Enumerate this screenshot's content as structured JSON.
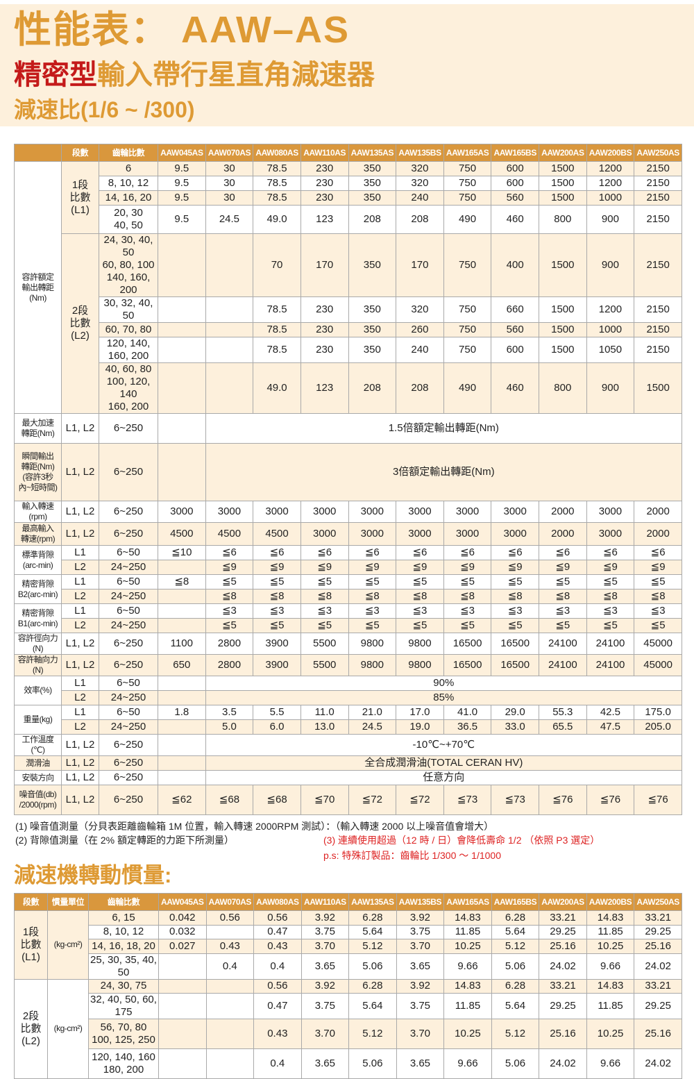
{
  "header": {
    "title": "性能表：  AAW–AS",
    "subtitle_red": "精密型",
    "subtitle_rest": "輸入帶行星直角減速器",
    "ratio_range": "減速比(1/6 ~ /300)"
  },
  "colors": {
    "accent": "#de9a34",
    "header_bg": "#d9973d",
    "stripe": "#fdf0dc",
    "warning": "#d22222",
    "brand_red": "#c41a1a"
  },
  "models": [
    "AAW045AS",
    "AAW070AS",
    "AAW080AS",
    "AAW110AS",
    "AAW135AS",
    "AAW135BS",
    "AAW165AS",
    "AAW165BS",
    "AAW200AS",
    "AAW200BS",
    "AAW250AS"
  ],
  "table1": {
    "headers": [
      "",
      "段數",
      "齒輪比數"
    ],
    "rows": [
      {
        "cells": [
          "容許額定\n輸出轉距\n(Nm)",
          "1段\n比數\n(L1)",
          "6",
          "9.5",
          "30",
          "78.5",
          "230",
          "350",
          "320",
          "750",
          "600",
          "1500",
          "1200",
          "2150"
        ]
      },
      {
        "cells": [
          "8, 10, 12",
          "9.5",
          "30",
          "78.5",
          "230",
          "350",
          "320",
          "750",
          "600",
          "1500",
          "1200",
          "2150"
        ]
      },
      {
        "cells": [
          "14, 16, 20",
          "9.5",
          "30",
          "78.5",
          "230",
          "350",
          "240",
          "750",
          "560",
          "1500",
          "1000",
          "2150"
        ]
      },
      {
        "cells": [
          "20, 30\n40, 50",
          "9.5",
          "24.5",
          "49.0",
          "123",
          "208",
          "208",
          "490",
          "460",
          "800",
          "900",
          "2150"
        ]
      },
      {
        "cells": [
          "2段\n比數\n(L2)",
          "24, 30, 40, 50\n60, 80, 100\n140, 160, 200",
          "",
          "",
          "70",
          "170",
          "350",
          "170",
          "750",
          "400",
          "1500",
          "900",
          "2150"
        ]
      },
      {
        "cells": [
          "30, 32, 40, 50",
          "",
          "",
          "78.5",
          "230",
          "350",
          "320",
          "750",
          "660",
          "1500",
          "1200",
          "2150"
        ]
      },
      {
        "cells": [
          "60, 70, 80",
          "",
          "",
          "78.5",
          "230",
          "350",
          "260",
          "750",
          "560",
          "1500",
          "1000",
          "2150"
        ]
      },
      {
        "cells": [
          "120, 140, 160, 200",
          "",
          "",
          "78.5",
          "230",
          "350",
          "240",
          "750",
          "600",
          "1500",
          "1050",
          "2150"
        ]
      },
      {
        "cells": [
          "40, 60, 80\n100, 120, 140\n160, 200",
          "",
          "",
          "49.0",
          "123",
          "208",
          "208",
          "490",
          "460",
          "800",
          "900",
          "1500"
        ]
      },
      {
        "cells": [
          "最大加速\n轉距(Nm)",
          "L1, L2",
          "6~250",
          "",
          "1.5倍額定輸出轉距(Nm)"
        ]
      },
      {
        "cells": [
          "瞬間輸出\n轉距(Nm)\n(容許3秒\n內~短時間)",
          "L1, L2",
          "6~250",
          "",
          "3倍額定輸出轉距(Nm)"
        ]
      },
      {
        "cells": [
          "輸入轉速(rpm)",
          "L1, L2",
          "6~250",
          "3000",
          "3000",
          "3000",
          "3000",
          "3000",
          "3000",
          "3000",
          "3000",
          "2000",
          "3000",
          "2000"
        ]
      },
      {
        "cells": [
          "最高輸入\n轉速(rpm)",
          "L1, L2",
          "6~250",
          "4500",
          "4500",
          "4500",
          "3000",
          "3000",
          "3000",
          "3000",
          "3000",
          "2000",
          "3000",
          "2000"
        ]
      },
      {
        "cells": [
          "標準背隙\n(arc-min)",
          "L1",
          "6~50",
          "≦10",
          "≦6",
          "≦6",
          "≦6",
          "≦6",
          "≦6",
          "≦6",
          "≦6",
          "≦6",
          "≦6",
          "≦6"
        ]
      },
      {
        "cells": [
          "L2",
          "24~250",
          "",
          "≦9",
          "≦9",
          "≦9",
          "≦9",
          "≦9",
          "≦9",
          "≦9",
          "≦9",
          "≦9",
          "≦9"
        ]
      },
      {
        "cells": [
          "精密背隙\nB2(arc-min)",
          "L1",
          "6~50",
          "≦8",
          "≦5",
          "≦5",
          "≦5",
          "≦5",
          "≦5",
          "≦5",
          "≦5",
          "≦5",
          "≦5",
          "≦5"
        ]
      },
      {
        "cells": [
          "L2",
          "24~250",
          "",
          "≦8",
          "≦8",
          "≦8",
          "≦8",
          "≦8",
          "≦8",
          "≦8",
          "≦8",
          "≦8",
          "≦8"
        ]
      },
      {
        "cells": [
          "精密背隙\nB1(arc-min)",
          "L1",
          "6~50",
          "",
          "≦3",
          "≦3",
          "≦3",
          "≦3",
          "≦3",
          "≦3",
          "≦3",
          "≦3",
          "≦3",
          "≦3"
        ]
      },
      {
        "cells": [
          "L2",
          "24~250",
          "",
          "≦5",
          "≦5",
          "≦5",
          "≦5",
          "≦5",
          "≦5",
          "≦5",
          "≦5",
          "≦5",
          "≦5"
        ]
      },
      {
        "cells": [
          "容許徑向力(N)",
          "L1, L2",
          "6~250",
          "1100",
          "2800",
          "3900",
          "5500",
          "9800",
          "9800",
          "16500",
          "16500",
          "24100",
          "24100",
          "45000"
        ]
      },
      {
        "cells": [
          "容許軸向力(N)",
          "L1, L2",
          "6~250",
          "650",
          "2800",
          "3900",
          "5500",
          "9800",
          "9800",
          "16500",
          "16500",
          "24100",
          "24100",
          "45000"
        ]
      },
      {
        "cells": [
          "效率(%)",
          "L1",
          "6~50",
          "",
          "90%"
        ]
      },
      {
        "cells": [
          "L2",
          "24~250",
          "",
          "85%"
        ]
      },
      {
        "cells": [
          "重量(kg)",
          "L1",
          "6~50",
          "1.8",
          "3.5",
          "5.5",
          "11.0",
          "21.0",
          "17.0",
          "41.0",
          "29.0",
          "55.3",
          "42.5",
          "175.0"
        ]
      },
      {
        "cells": [
          "L2",
          "24~250",
          "",
          "5.0",
          "6.0",
          "13.0",
          "24.5",
          "19.0",
          "36.5",
          "33.0",
          "65.5",
          "47.5",
          "205.0"
        ]
      },
      {
        "cells": [
          "工作溫度(℃)",
          "L1, L2",
          "6~250",
          "",
          "-10℃~+70℃"
        ]
      },
      {
        "cells": [
          "潤滑油",
          "L1, L2",
          "6~250",
          "",
          "全合成潤滑油(TOTAL CERAN HV)"
        ]
      },
      {
        "cells": [
          "安裝方向",
          "L1, L2",
          "6~250",
          "",
          "任意方向"
        ]
      },
      {
        "cells": [
          "噪音值(db)\n/2000(rpm)",
          "L1, L2",
          "6~250",
          "≦62",
          "≦68",
          "≦68",
          "≦70",
          "≦72",
          "≦72",
          "≦73",
          "≦73",
          "≦76",
          "≦76",
          "≦76"
        ]
      }
    ]
  },
  "notes": {
    "n1": "(1) 噪音值測量（分貝表距離齒輪箱 1M 位置，輸入轉速 2000RPM 測試）：（輸入轉速 2000 以上噪音值會增大）",
    "n2": "(2) 背隙值測量（在 2% 額定轉距的力距下所測量）",
    "n3": "(3) 連續使用超過（12 時 / 日）會降低壽命 1/2 （依照 P3 選定）",
    "ps": "p.s: 特殊訂製品：齒輪比 1/300 ～ 1/1000"
  },
  "section2_title": "減速機轉動慣量:",
  "table2": {
    "headers": [
      "段數",
      "慣量單位",
      "齒輪比數"
    ],
    "rows": [
      {
        "cells": [
          "1段\n比數\n(L1)",
          "(kg-cm²)",
          "6, 15",
          "0.042",
          "0.56",
          "0.56",
          "3.92",
          "6.28",
          "3.92",
          "14.83",
          "6.28",
          "33.21",
          "14.83",
          "33.21"
        ]
      },
      {
        "cells": [
          "8, 10, 12",
          "0.032",
          "",
          "0.47",
          "3.75",
          "5.64",
          "3.75",
          "11.85",
          "5.64",
          "29.25",
          "11.85",
          "29.25"
        ]
      },
      {
        "cells": [
          "14, 16, 18, 20",
          "0.027",
          "0.43",
          "0.43",
          "3.70",
          "5.12",
          "3.70",
          "10.25",
          "5.12",
          "25.16",
          "10.25",
          "25.16"
        ]
      },
      {
        "cells": [
          "25, 30, 35, 40, 50",
          "",
          "0.4",
          "0.4",
          "3.65",
          "5.06",
          "3.65",
          "9.66",
          "5.06",
          "24.02",
          "9.66",
          "24.02"
        ]
      },
      {
        "cells": [
          "2段\n比數\n(L2)",
          "(kg-cm²)",
          "24, 30, 75",
          "",
          "",
          "0.56",
          "3.92",
          "6.28",
          "3.92",
          "14.83",
          "6.28",
          "33.21",
          "14.83",
          "33.21"
        ]
      },
      {
        "cells": [
          "32, 40, 50, 60, 175",
          "",
          "",
          "0.47",
          "3.75",
          "5.64",
          "3.75",
          "11.85",
          "5.64",
          "29.25",
          "11.85",
          "29.25"
        ]
      },
      {
        "cells": [
          "56, 70, 80\n100, 125, 250",
          "",
          "",
          "0.43",
          "3.70",
          "5.12",
          "3.70",
          "10.25",
          "5.12",
          "25.16",
          "10.25",
          "25.16"
        ]
      },
      {
        "cells": [
          "120, 140, 160\n180, 200",
          "",
          "",
          "0.4",
          "3.65",
          "5.06",
          "3.65",
          "9.66",
          "5.06",
          "24.02",
          "9.66",
          "24.02"
        ]
      }
    ]
  }
}
